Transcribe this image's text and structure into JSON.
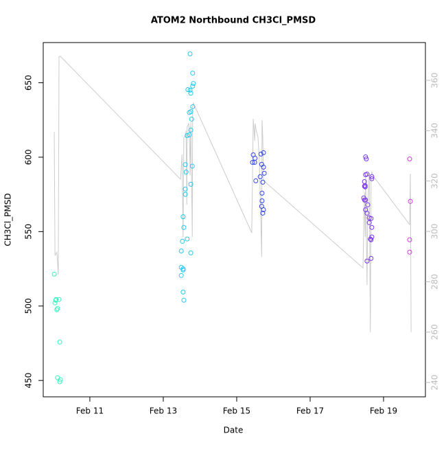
{
  "chart_data": {
    "type": "scatter",
    "title": "ATOM2 Northbound CH3Cl_PMSD",
    "x_label": "Date",
    "y_label": "CH3Cl_PMSD",
    "xlim": [
      9.73,
      20.14
    ],
    "xticks": [
      {
        "value": 11,
        "label": "Feb 11"
      },
      {
        "value": 13,
        "label": "Feb 13"
      },
      {
        "value": 15,
        "label": "Feb 15"
      },
      {
        "value": 17,
        "label": "Feb 17"
      },
      {
        "value": 19,
        "label": "Feb 19"
      }
    ],
    "ylim": [
      439,
      677
    ],
    "yticks": [
      450,
      500,
      550,
      600,
      650
    ],
    "y2lim": [
      234.3,
      375
    ],
    "y2ticks": [
      240,
      260,
      280,
      300,
      320,
      340,
      360
    ],
    "series": [
      {
        "type": "line",
        "axis": "y2",
        "color": "#cccccc",
        "x": [
          10.03,
          10.05,
          10.1,
          10.12,
          10.14,
          10.16,
          10.2,
          13.47,
          13.51,
          13.54,
          13.56,
          13.6,
          13.62,
          13.64,
          13.65,
          13.69,
          13.71,
          13.73,
          13.75,
          13.79,
          13.8,
          13.82,
          15.41,
          15.45,
          15.49,
          15.5,
          15.54,
          15.58,
          15.62,
          15.68,
          15.69,
          15.71,
          15.73,
          18.44,
          18.48,
          18.5,
          18.51,
          18.55,
          18.57,
          18.61,
          18.64,
          18.66,
          18.68,
          18.73,
          19.71,
          19.73,
          19.75
        ],
        "values": [
          339.5,
          290.4,
          291.8,
          287.7,
          282.8,
          369.5,
          369.5,
          320.7,
          330.5,
          297.8,
          337.4,
          337.9,
          340,
          310.6,
          341.4,
          342.8,
          340.5,
          322.3,
          343.4,
          297.8,
          349.6,
          351,
          299.4,
          344.7,
          336,
          342.8,
          339.5,
          337.4,
          326.4,
          289.9,
          344.2,
          337.4,
          320.2,
          285.5,
          315.5,
          297.8,
          322.3,
          278.7,
          310.6,
          322.9,
          260,
          321,
          323.7,
          321.8,
          302.7,
          322.9,
          260
        ]
      },
      {
        "type": "scatter",
        "color": "#33f5bd",
        "x": [
          10.03,
          10.05,
          10.07,
          10.08,
          10.1,
          10.12,
          10.16,
          10.18,
          10.12,
          10.18,
          10.2
        ],
        "values": [
          521.4,
          502.1,
          503.9,
          504.4,
          497.5,
          498.4,
          504.4,
          475.8,
          451.8,
          449.1,
          450.5
        ]
      },
      {
        "type": "scatter",
        "color": "#22c8ee",
        "x": [
          13.73,
          13.8,
          13.82,
          13.8,
          13.73,
          13.67,
          13.75,
          13.8,
          13.75,
          13.71,
          13.77,
          13.75,
          13.65,
          13.71,
          13.79,
          13.6,
          13.62,
          13.75,
          13.6,
          13.6,
          13.54,
          13.56,
          13.65,
          13.52,
          13.49,
          13.75,
          13.49,
          13.54,
          13.54,
          13.49,
          13.54,
          13.56
        ],
        "values": [
          669.4,
          656.5,
          649.5,
          647.7,
          645,
          645.4,
          643,
          633.9,
          630.6,
          630,
          625.6,
          618.2,
          614.5,
          615,
          594,
          595,
          590,
          581.8,
          578.6,
          575,
          560,
          552.8,
          545,
          543.5,
          537,
          535.7,
          526,
          525,
          524.2,
          520.5,
          509.4,
          503.9
        ]
      },
      {
        "type": "scatter",
        "color": "#3046e8",
        "x": [
          15.45,
          15.5,
          15.49,
          15.43,
          15.66,
          15.73,
          15.68,
          15.73,
          15.75,
          15.64,
          15.52,
          15.71,
          15.69,
          15.69,
          15.68,
          15.73,
          15.71
        ],
        "values": [
          601.6,
          599.3,
          596.5,
          596.5,
          602.1,
          603,
          595.2,
          593.3,
          589.2,
          586.9,
          584.1,
          583.2,
          575.8,
          570.7,
          567,
          564.7,
          562.4
        ]
      },
      {
        "type": "scatter",
        "color": "#7a35ee",
        "x": [
          18.51,
          18.53,
          18.51,
          18.55,
          18.48,
          18.5,
          18.48,
          18.5,
          18.46,
          18.48,
          18.51,
          18.57,
          18.51,
          18.55,
          18.61,
          18.61,
          18.68,
          18.68,
          18.66,
          18.68,
          18.64,
          18.66,
          18.68,
          18.66,
          18.55
        ],
        "values": [
          600.2,
          598.8,
          588.2,
          588.6,
          583.6,
          580.9,
          580.5,
          580,
          572.6,
          571.2,
          571.2,
          568,
          564.7,
          562.4,
          559.2,
          556,
          586.9,
          585.5,
          558.8,
          552.8,
          545,
          544.5,
          546.4,
          532,
          530.2
        ]
      },
      {
        "type": "scatter",
        "color": "#d935e6",
        "x": [
          19.71,
          19.73,
          19.71,
          19.71
        ],
        "values": [
          598.8,
          570.3,
          544.5,
          536.2
        ]
      }
    ]
  }
}
